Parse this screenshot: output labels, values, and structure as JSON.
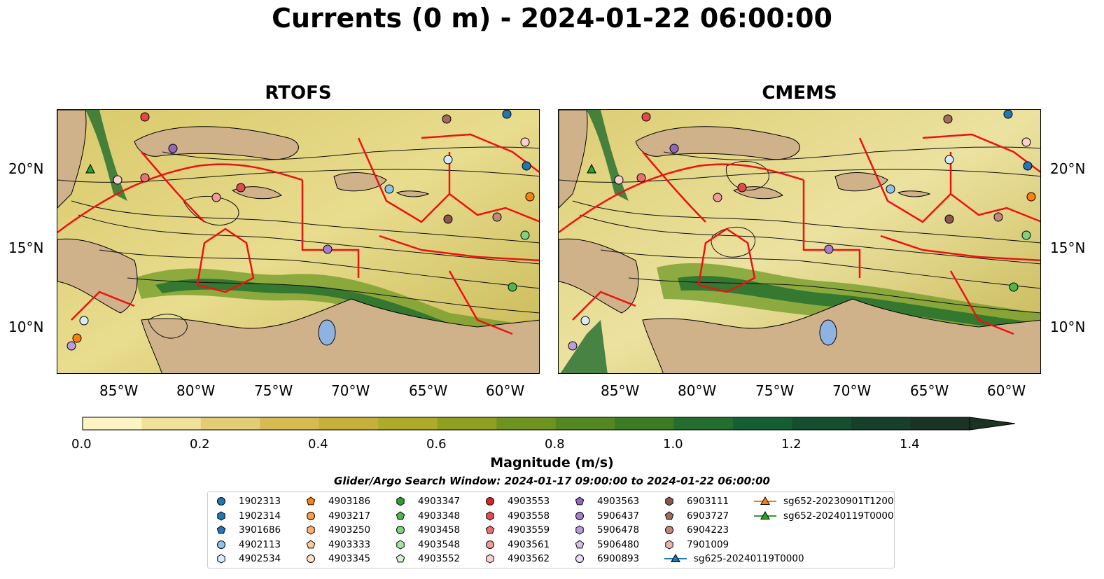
{
  "title": "Currents (0 m) - 2024-01-22 06:00:00",
  "panels": [
    {
      "title": "RTOFS"
    },
    {
      "title": "CMEMS"
    }
  ],
  "lat_ticks": [
    "20°N",
    "15°N",
    "10°N"
  ],
  "lon_ticks": [
    "85°W",
    "80°W",
    "75°W",
    "70°W",
    "65°W",
    "60°W"
  ],
  "colorbar": {
    "label": "Magnitude (m/s)",
    "ticks": [
      "0.0",
      "0.2",
      "0.4",
      "0.6",
      "0.8",
      "1.0",
      "1.2",
      "1.4"
    ],
    "range": [
      0,
      1.5
    ],
    "extend": "max",
    "colors": [
      "#fbf4c3",
      "#efe09a",
      "#e3cd74",
      "#d6ba52",
      "#c6b03b",
      "#aeaa2a",
      "#8fa021",
      "#6e931f",
      "#52881f",
      "#3a7c24",
      "#236e2d",
      "#155f32",
      "#144f30",
      "#17402a",
      "#1b3322"
    ]
  },
  "search_window": "Glider/Argo Search Window: 2024-01-17 09:00:00 to 2024-01-22 06:00:00",
  "legend": [
    {
      "label": "1902313",
      "marker": "circle",
      "color": "#1f77b4"
    },
    {
      "label": "1902314",
      "marker": "hexagon",
      "color": "#1f77b4"
    },
    {
      "label": "3901686",
      "marker": "pentagon",
      "color": "#1f77b4"
    },
    {
      "label": "4902113",
      "marker": "circle",
      "color": "#8cc5ea"
    },
    {
      "label": "4902534",
      "marker": "hexagon",
      "color": "#d6ecfa"
    },
    {
      "label": "4903186",
      "marker": "pentagon",
      "color": "#ff7f0e"
    },
    {
      "label": "4903217",
      "marker": "circle",
      "color": "#ff9a45"
    },
    {
      "label": "4903250",
      "marker": "hexagon",
      "color": "#ffae70"
    },
    {
      "label": "4903333",
      "marker": "pentagon",
      "color": "#ffc99a"
    },
    {
      "label": "4903345",
      "marker": "circle",
      "color": "#ffe2c6"
    },
    {
      "label": "4903347",
      "marker": "hexagon",
      "color": "#2ca02c"
    },
    {
      "label": "4903348",
      "marker": "pentagon",
      "color": "#4cb84c"
    },
    {
      "label": "4903458",
      "marker": "circle",
      "color": "#7fd27f"
    },
    {
      "label": "4903548",
      "marker": "hexagon",
      "color": "#a9e5a2"
    },
    {
      "label": "4903552",
      "marker": "pentagon",
      "color": "#d3f5cc"
    },
    {
      "label": "4903553",
      "marker": "circle",
      "color": "#d62728"
    },
    {
      "label": "4903558",
      "marker": "hexagon",
      "color": "#e04a4a"
    },
    {
      "label": "4903559",
      "marker": "pentagon",
      "color": "#e87070"
    },
    {
      "label": "4903561",
      "marker": "circle",
      "color": "#f09a9a"
    },
    {
      "label": "4903562",
      "marker": "hexagon",
      "color": "#fbd0d0"
    },
    {
      "label": "4903563",
      "marker": "pentagon",
      "color": "#9467bd"
    },
    {
      "label": "5906437",
      "marker": "circle",
      "color": "#a680cc"
    },
    {
      "label": "5906478",
      "marker": "hexagon",
      "color": "#bb9ddb"
    },
    {
      "label": "5906480",
      "marker": "pentagon",
      "color": "#d4c2ea"
    },
    {
      "label": "6900893",
      "marker": "circle",
      "color": "#ecdcf8"
    },
    {
      "label": "6903111",
      "marker": "hexagon",
      "color": "#8c564b"
    },
    {
      "label": "6903727",
      "marker": "pentagon",
      "color": "#a36b5e"
    },
    {
      "label": "6904223",
      "marker": "circle",
      "color": "#c0897b"
    },
    {
      "label": "7901009",
      "marker": "hexagon",
      "color": "#e6b8a8"
    },
    {
      "label": "sg625-20240119T0000",
      "marker": "line-triangle",
      "color": "#1f77b4"
    },
    {
      "label": "sg652-20230901T1200",
      "marker": "line-triangle",
      "color": "#ff7f0e"
    },
    {
      "label": "sg652-20240119T0000",
      "marker": "line-triangle",
      "color": "#2ca02c"
    }
  ]
}
